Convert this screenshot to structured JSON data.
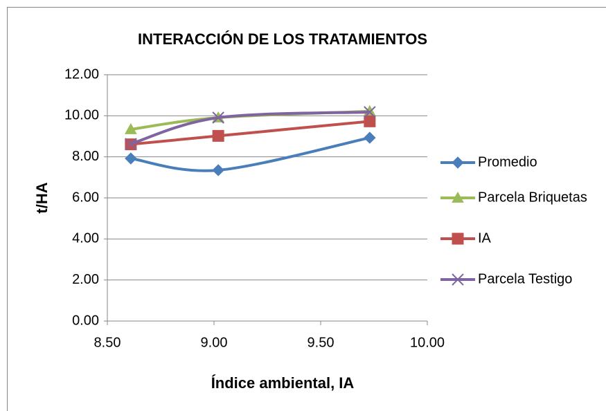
{
  "chart_data": {
    "type": "line",
    "title": "INTERACCIÓN DE LOS TRATAMIENTOS",
    "x_label": "Índice ambiental, IA",
    "y_label": "t/HA",
    "x": [
      8.61,
      9.02,
      9.73
    ],
    "smooth": true,
    "grid": true,
    "legend": "right",
    "series": [
      {
        "name": "Promedio",
        "color": "#4a7ebb",
        "marker": "diamond",
        "values": [
          7.92,
          7.35,
          8.93
        ]
      },
      {
        "name": "Parcela Briquetas",
        "color": "#9bbb59",
        "marker": "triangle",
        "values": [
          9.34,
          9.91,
          10.22
        ]
      },
      {
        "name": "IA",
        "color": "#c0504d",
        "marker": "square",
        "values": [
          8.61,
          9.02,
          9.73
        ]
      },
      {
        "name": "Parcela Testigo",
        "color": "#8064a2",
        "marker": "x",
        "values": [
          8.63,
          9.91,
          10.18
        ]
      }
    ],
    "xlim": [
      8.5,
      10
    ],
    "xticks": [
      {
        "value": 8.5,
        "label": "8.50"
      },
      {
        "value": 9,
        "label": "9.00"
      },
      {
        "value": 9.5,
        "label": "9.50"
      },
      {
        "value": 10,
        "label": "10.00"
      }
    ],
    "ylim": [
      0,
      12
    ],
    "yticks": [
      {
        "value": 0,
        "label": "0.00"
      },
      {
        "value": 2,
        "label": "2.00"
      },
      {
        "value": 4,
        "label": "4.00"
      },
      {
        "value": 6,
        "label": "6.00"
      },
      {
        "value": 8,
        "label": "8.00"
      },
      {
        "value": 10,
        "label": "10.00"
      },
      {
        "value": 12,
        "label": "12.00"
      }
    ]
  }
}
